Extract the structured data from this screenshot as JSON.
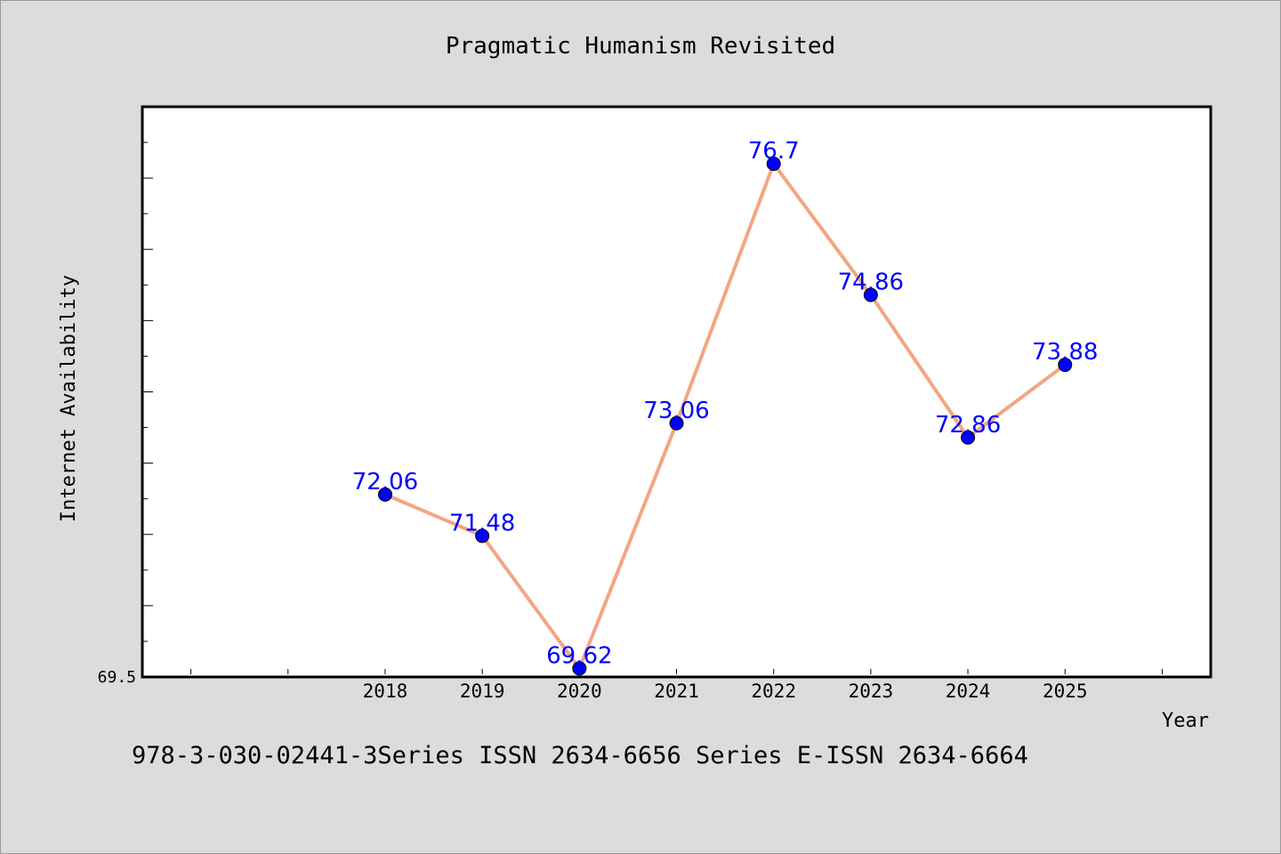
{
  "footer_text": "978-3-030-02441-3Series ISSN 2634-6656 Series E-ISSN 2634-6664",
  "colors": {
    "background": "#dcdcdc",
    "plot_background": "#ffffff",
    "line": "#f4a582",
    "marker": "#0000ff",
    "label": "#0000ff"
  },
  "chart_data": {
    "type": "line",
    "title": "Pragmatic Humanism Revisited",
    "xlabel": "Year",
    "ylabel": "Internet Availability",
    "x": [
      "2018",
      "2019",
      "2020",
      "2021",
      "2022",
      "2023",
      "2024",
      "2025"
    ],
    "series": [
      {
        "values": [
          72.06,
          71.48,
          69.62,
          73.06,
          76.7,
          74.86,
          72.86,
          73.88
        ]
      }
    ],
    "data_labels": [
      "72.06",
      "71.48",
      "69.62",
      "73.06",
      "76.7",
      "74.86",
      "72.86",
      "73.88"
    ],
    "y_tick_labels": [
      "69.5"
    ],
    "ylim": [
      69.5,
      77.5
    ],
    "xlim": [
      2015.5,
      2026.5
    ],
    "grid": false,
    "legend": "none"
  }
}
